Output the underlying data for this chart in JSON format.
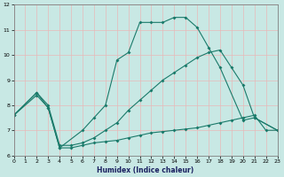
{
  "xlabel": "Humidex (Indice chaleur)",
  "bg_color": "#c8e8e4",
  "grid_color": "#e8b8b8",
  "line_color": "#1a7a6a",
  "xlim": [
    0,
    23
  ],
  "ylim": [
    6,
    12
  ],
  "yticks": [
    6,
    7,
    8,
    9,
    10,
    11,
    12
  ],
  "xticks": [
    0,
    1,
    2,
    3,
    4,
    5,
    6,
    7,
    8,
    9,
    10,
    11,
    12,
    13,
    14,
    15,
    16,
    17,
    18,
    19,
    20,
    21,
    22,
    23
  ],
  "line1_x": [
    0,
    2,
    3,
    4,
    6,
    7,
    8,
    9,
    10,
    11,
    12,
    13,
    14,
    15,
    16,
    17,
    18,
    20,
    21,
    23
  ],
  "line1_y": [
    7.6,
    8.4,
    7.9,
    6.3,
    7.0,
    7.5,
    8.0,
    9.8,
    10.1,
    11.3,
    11.3,
    11.3,
    11.5,
    11.5,
    11.1,
    10.3,
    9.5,
    7.4,
    7.5,
    7.0
  ],
  "line2_x": [
    0,
    2,
    3,
    4,
    5,
    6,
    7,
    8,
    9,
    10,
    11,
    12,
    13,
    14,
    15,
    16,
    17,
    18,
    19,
    20,
    21,
    23
  ],
  "line2_y": [
    7.6,
    8.5,
    8.0,
    6.4,
    6.4,
    6.5,
    6.7,
    7.0,
    7.3,
    7.8,
    8.2,
    8.6,
    9.0,
    9.3,
    9.6,
    9.9,
    10.1,
    10.2,
    9.5,
    8.8,
    7.5,
    7.0
  ],
  "line3_x": [
    0,
    2,
    3,
    4,
    5,
    6,
    7,
    8,
    9,
    10,
    11,
    12,
    13,
    14,
    15,
    16,
    17,
    18,
    19,
    20,
    21,
    22,
    23
  ],
  "line3_y": [
    7.6,
    8.5,
    7.9,
    6.3,
    6.3,
    6.4,
    6.5,
    6.55,
    6.6,
    6.7,
    6.8,
    6.9,
    6.95,
    7.0,
    7.05,
    7.1,
    7.2,
    7.3,
    7.4,
    7.5,
    7.6,
    7.0,
    7.0
  ]
}
